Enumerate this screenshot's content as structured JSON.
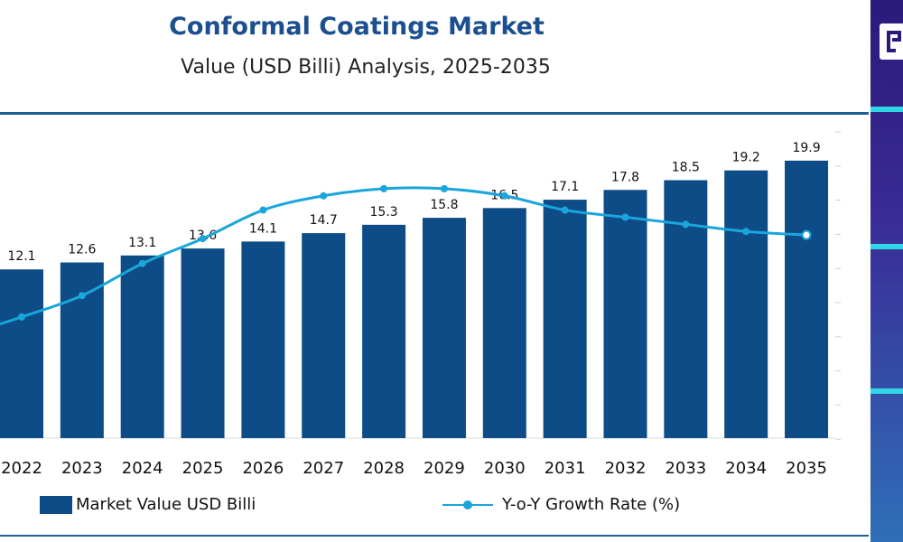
{
  "header": {
    "title": "Conformal Coatings Market",
    "subtitle": "Value (USD Billi) Analysis, 2025-2035"
  },
  "colors": {
    "bar": "#0d4c86",
    "line": "#1aa6dc",
    "title": "#1c4f8f",
    "panel": "#2a1a7a"
  },
  "chart_data": {
    "type": "bar",
    "categories": [
      "2022",
      "2023",
      "2024",
      "2025",
      "2026",
      "2027",
      "2028",
      "2029",
      "2030",
      "2031",
      "2032",
      "2033",
      "2034",
      "2035"
    ],
    "series": [
      {
        "name": "Market Value USD Billi",
        "type": "bar",
        "values": [
          12.1,
          12.6,
          13.1,
          13.6,
          14.1,
          14.7,
          15.3,
          15.8,
          16.5,
          17.1,
          17.8,
          18.5,
          19.2,
          19.9
        ]
      },
      {
        "name": "Y-o-Y Growth Rate (%)",
        "type": "line",
        "values": [
          3.4,
          4.0,
          4.9,
          5.6,
          6.4,
          6.8,
          7.0,
          7.0,
          6.8,
          6.4,
          6.2,
          6.0,
          5.8,
          5.7
        ]
      }
    ],
    "ylim": [
      0,
      23
    ],
    "y2lim": [
      0,
      9
    ],
    "grid": false,
    "legend": "bottom"
  }
}
